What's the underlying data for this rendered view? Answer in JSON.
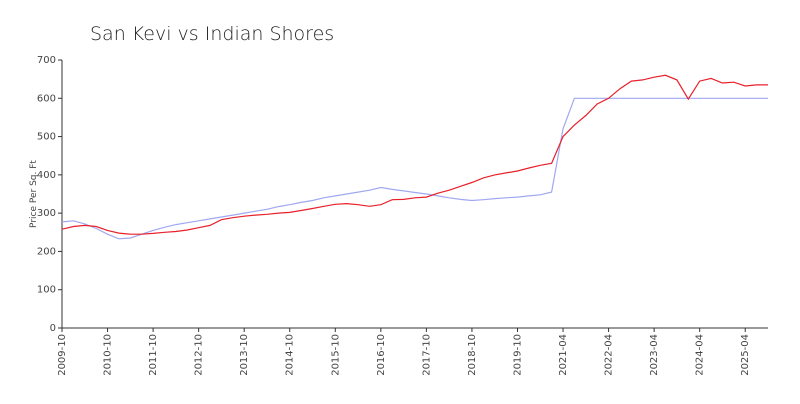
{
  "chart_data": {
    "type": "line",
    "title": "San Kevi vs Indian Shores",
    "ylabel": "Price Per Sq. Ft",
    "categories": [
      "2009-10",
      null,
      null,
      null,
      "2010-10",
      null,
      null,
      null,
      "2011-10",
      null,
      null,
      null,
      "2012-10",
      null,
      null,
      null,
      "2013-10",
      null,
      null,
      null,
      "2014-10",
      null,
      null,
      null,
      "2015-10",
      null,
      null,
      null,
      "2016-10",
      null,
      null,
      null,
      "2017-10",
      null,
      null,
      null,
      "2018-10",
      null,
      null,
      null,
      "2019-10",
      null,
      null,
      null,
      "2021-04",
      null,
      null,
      null,
      "2022-04",
      null,
      null,
      null,
      "2023-04",
      null,
      null,
      null,
      "2024-04",
      null,
      null,
      null,
      "2025-04",
      null,
      null
    ],
    "series": [
      {
        "name": "San Kevi",
        "color": "#a0a8f0",
        "values": [
          277,
          280,
          272,
          260,
          245,
          233,
          235,
          245,
          255,
          263,
          270,
          275,
          280,
          285,
          290,
          295,
          300,
          305,
          310,
          317,
          322,
          328,
          333,
          340,
          345,
          350,
          355,
          360,
          367,
          362,
          358,
          354,
          350,
          345,
          340,
          336,
          333,
          335,
          338,
          340,
          342,
          345,
          348,
          355,
          520,
          600,
          600,
          600,
          600,
          600,
          600,
          600,
          600,
          600,
          600,
          600,
          600,
          600,
          600,
          600,
          600,
          600,
          600
        ]
      },
      {
        "name": "Indian Shores",
        "color": "#e8202a",
        "values": [
          258,
          265,
          268,
          265,
          255,
          248,
          245,
          245,
          247,
          250,
          252,
          256,
          262,
          268,
          283,
          288,
          292,
          295,
          297,
          300,
          302,
          307,
          312,
          318,
          323,
          325,
          322,
          318,
          322,
          335,
          336,
          340,
          342,
          352,
          360,
          370,
          380,
          392,
          400,
          405,
          410,
          418,
          425,
          430,
          500,
          530,
          555,
          585,
          600,
          625,
          645,
          648,
          655,
          660,
          648,
          598,
          645,
          652,
          640,
          642,
          632,
          635,
          635
        ]
      }
    ],
    "ylim": [
      0,
      700
    ],
    "yticks": [
      0,
      100,
      200,
      300,
      400,
      500,
      600,
      700
    ]
  }
}
